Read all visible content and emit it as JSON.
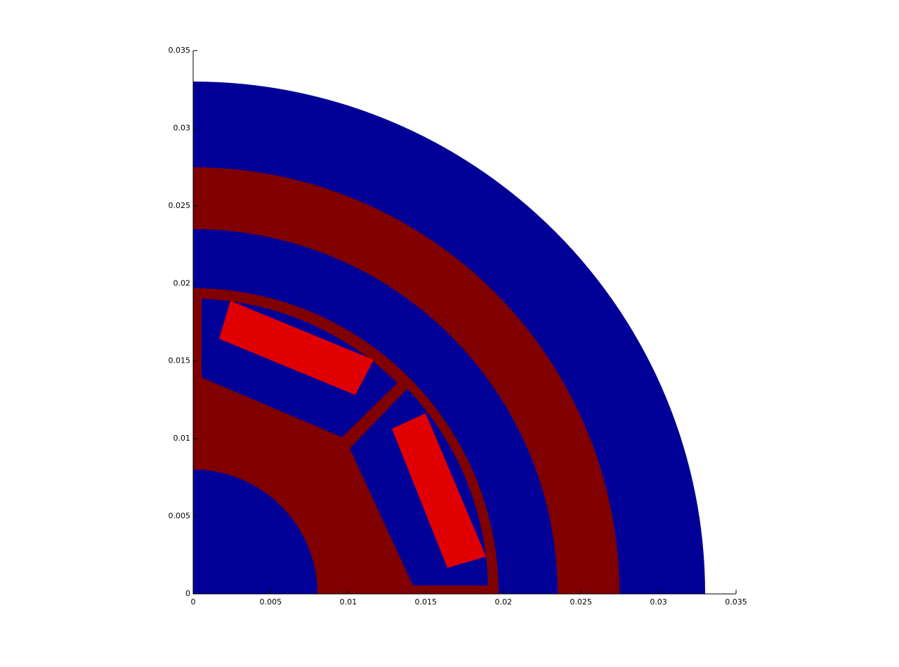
{
  "chart_data": {
    "type": "geometry",
    "xlim": [
      0,
      0.035
    ],
    "ylim": [
      0,
      0.035
    ],
    "xticks": [
      0,
      0.005,
      0.01,
      0.015,
      0.02,
      0.025,
      0.03,
      0.035
    ],
    "yticks": [
      0,
      0.005,
      0.01,
      0.015,
      0.02,
      0.025,
      0.03,
      0.035
    ]
  }
}
